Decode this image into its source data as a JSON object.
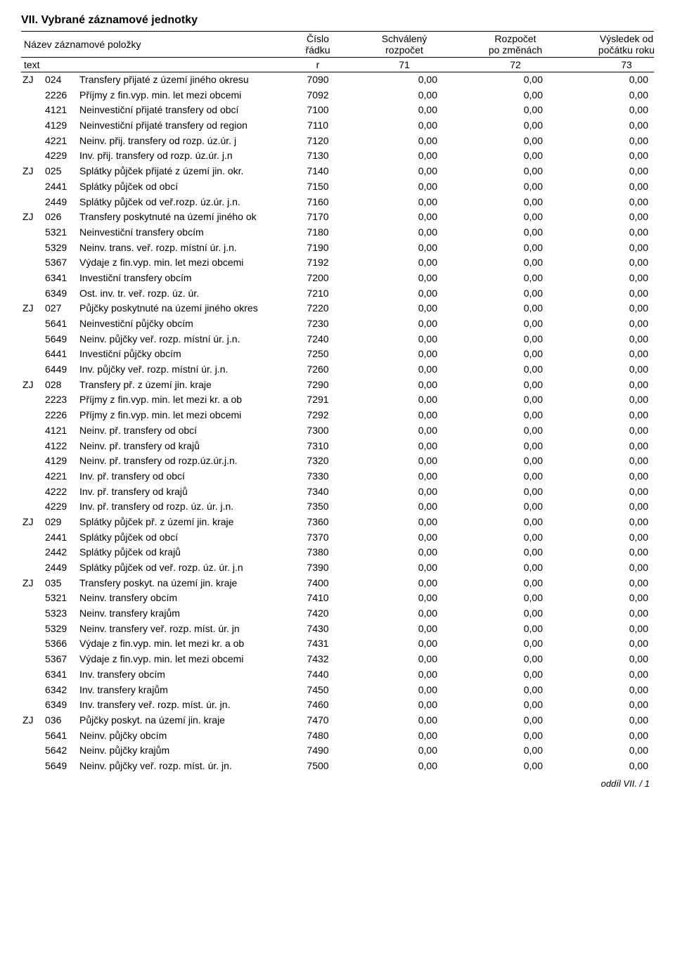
{
  "section_title": "VII. Vybrané záznamové jednotky",
  "header": {
    "name_label": "Název záznamové položky",
    "rnum_l1": "Číslo",
    "rnum_l2": "řádku",
    "col71_l1": "Schválený",
    "col71_l2": "rozpočet",
    "col72_l1": "Rozpočet",
    "col72_l2": "po změnách",
    "col73_l1": "Výsledek od",
    "col73_l2": "počátku roku"
  },
  "subheader": {
    "text": "text",
    "r": "r",
    "c71": "71",
    "c72": "72",
    "c73": "73"
  },
  "rows": [
    {
      "pref": "ZJ",
      "code": "024",
      "desc": "Transfery přijaté z území jiného okresu",
      "rnum": "7090",
      "v1": "0,00",
      "v2": "0,00",
      "v3": "0,00",
      "indent": false
    },
    {
      "pref": "",
      "code": "2226",
      "desc": "Příjmy z fin.vyp. min. let mezi obcemi",
      "rnum": "7092",
      "v1": "0,00",
      "v2": "0,00",
      "v3": "0,00",
      "indent": true
    },
    {
      "pref": "",
      "code": "4121",
      "desc": "Neinvestiční přijaté transfery od obcí",
      "rnum": "7100",
      "v1": "0,00",
      "v2": "0,00",
      "v3": "0,00",
      "indent": true
    },
    {
      "pref": "",
      "code": "4129",
      "desc": "Neinvestiční přijaté transfery od region",
      "rnum": "7110",
      "v1": "0,00",
      "v2": "0,00",
      "v3": "0,00",
      "indent": true
    },
    {
      "pref": "",
      "code": "4221",
      "desc": "Neinv. přij. transfery od rozp. úz.úr. j",
      "rnum": "7120",
      "v1": "0,00",
      "v2": "0,00",
      "v3": "0,00",
      "indent": true
    },
    {
      "pref": "",
      "code": "4229",
      "desc": "Inv. přij. transfery od rozp. úz.úr. j.n",
      "rnum": "7130",
      "v1": "0,00",
      "v2": "0,00",
      "v3": "0,00",
      "indent": true
    },
    {
      "pref": "ZJ",
      "code": "025",
      "desc": "Splátky půjček přijaté z území jin. okr.",
      "rnum": "7140",
      "v1": "0,00",
      "v2": "0,00",
      "v3": "0,00",
      "indent": false
    },
    {
      "pref": "",
      "code": "2441",
      "desc": "Splátky půjček od obcí",
      "rnum": "7150",
      "v1": "0,00",
      "v2": "0,00",
      "v3": "0,00",
      "indent": true
    },
    {
      "pref": "",
      "code": "2449",
      "desc": "Splátky půjček od veř.rozp. úz.úr. j.n.",
      "rnum": "7160",
      "v1": "0,00",
      "v2": "0,00",
      "v3": "0,00",
      "indent": true
    },
    {
      "pref": "ZJ",
      "code": "026",
      "desc": "Transfery poskytnuté na území jiného ok",
      "rnum": "7170",
      "v1": "0,00",
      "v2": "0,00",
      "v3": "0,00",
      "indent": false
    },
    {
      "pref": "",
      "code": "5321",
      "desc": "Neinvestiční transfery obcím",
      "rnum": "7180",
      "v1": "0,00",
      "v2": "0,00",
      "v3": "0,00",
      "indent": true
    },
    {
      "pref": "",
      "code": "5329",
      "desc": "Neinv. trans. veř. rozp. místní úr. j.n.",
      "rnum": "7190",
      "v1": "0,00",
      "v2": "0,00",
      "v3": "0,00",
      "indent": true
    },
    {
      "pref": "",
      "code": "5367",
      "desc": "Výdaje z fin.vyp. min. let mezi obcemi",
      "rnum": "7192",
      "v1": "0,00",
      "v2": "0,00",
      "v3": "0,00",
      "indent": true
    },
    {
      "pref": "",
      "code": "6341",
      "desc": "Investiční transfery obcím",
      "rnum": "7200",
      "v1": "0,00",
      "v2": "0,00",
      "v3": "0,00",
      "indent": true
    },
    {
      "pref": "",
      "code": "6349",
      "desc": "Ost. inv. tr. veř. rozp. úz. úr.",
      "rnum": "7210",
      "v1": "0,00",
      "v2": "0,00",
      "v3": "0,00",
      "indent": true
    },
    {
      "pref": "ZJ",
      "code": "027",
      "desc": "Půjčky poskytnuté na území jiného okres",
      "rnum": "7220",
      "v1": "0,00",
      "v2": "0,00",
      "v3": "0,00",
      "indent": false
    },
    {
      "pref": "",
      "code": "5641",
      "desc": "Neinvestiční půjčky obcím",
      "rnum": "7230",
      "v1": "0,00",
      "v2": "0,00",
      "v3": "0,00",
      "indent": true
    },
    {
      "pref": "",
      "code": "5649",
      "desc": "Neinv. půjčky veř. rozp. místní úr. j.n.",
      "rnum": "7240",
      "v1": "0,00",
      "v2": "0,00",
      "v3": "0,00",
      "indent": true
    },
    {
      "pref": "",
      "code": "6441",
      "desc": "Investiční půjčky obcím",
      "rnum": "7250",
      "v1": "0,00",
      "v2": "0,00",
      "v3": "0,00",
      "indent": true
    },
    {
      "pref": "",
      "code": "6449",
      "desc": "Inv. půjčky veř. rozp. místní úr. j.n.",
      "rnum": "7260",
      "v1": "0,00",
      "v2": "0,00",
      "v3": "0,00",
      "indent": true
    },
    {
      "pref": "ZJ",
      "code": "028",
      "desc": "Transfery př. z území jin. kraje",
      "rnum": "7290",
      "v1": "0,00",
      "v2": "0,00",
      "v3": "0,00",
      "indent": false
    },
    {
      "pref": "",
      "code": "2223",
      "desc": "Příjmy z fin.vyp. min. let mezi kr. a ob",
      "rnum": "7291",
      "v1": "0,00",
      "v2": "0,00",
      "v3": "0,00",
      "indent": true
    },
    {
      "pref": "",
      "code": "2226",
      "desc": "Příjmy z fin.vyp. min. let mezi obcemi",
      "rnum": "7292",
      "v1": "0,00",
      "v2": "0,00",
      "v3": "0,00",
      "indent": true
    },
    {
      "pref": "",
      "code": "4121",
      "desc": "Neinv. př. transfery od obcí",
      "rnum": "7300",
      "v1": "0,00",
      "v2": "0,00",
      "v3": "0,00",
      "indent": true
    },
    {
      "pref": "",
      "code": "4122",
      "desc": "Neinv. př. transfery od krajů",
      "rnum": "7310",
      "v1": "0,00",
      "v2": "0,00",
      "v3": "0,00",
      "indent": true
    },
    {
      "pref": "",
      "code": "4129",
      "desc": "Neinv. př. transfery od rozp.úz.úr.j.n.",
      "rnum": "7320",
      "v1": "0,00",
      "v2": "0,00",
      "v3": "0,00",
      "indent": true
    },
    {
      "pref": "",
      "code": "4221",
      "desc": "Inv. př. transfery od obcí",
      "rnum": "7330",
      "v1": "0,00",
      "v2": "0,00",
      "v3": "0,00",
      "indent": true
    },
    {
      "pref": "",
      "code": "4222",
      "desc": "Inv. př. transfery od krajů",
      "rnum": "7340",
      "v1": "0,00",
      "v2": "0,00",
      "v3": "0,00",
      "indent": true
    },
    {
      "pref": "",
      "code": "4229",
      "desc": "Inv. př. transfery od rozp. úz. úr. j.n.",
      "rnum": "7350",
      "v1": "0,00",
      "v2": "0,00",
      "v3": "0,00",
      "indent": true
    },
    {
      "pref": "ZJ",
      "code": "029",
      "desc": "Splátky půjček př. z území jin. kraje",
      "rnum": "7360",
      "v1": "0,00",
      "v2": "0,00",
      "v3": "0,00",
      "indent": false
    },
    {
      "pref": "",
      "code": "2441",
      "desc": "Splátky půjček od obcí",
      "rnum": "7370",
      "v1": "0,00",
      "v2": "0,00",
      "v3": "0,00",
      "indent": true
    },
    {
      "pref": "",
      "code": "2442",
      "desc": "Splátky půjček od krajů",
      "rnum": "7380",
      "v1": "0,00",
      "v2": "0,00",
      "v3": "0,00",
      "indent": true
    },
    {
      "pref": "",
      "code": "2449",
      "desc": "Splátky půjček od veř. rozp. úz. úr. j.n",
      "rnum": "7390",
      "v1": "0,00",
      "v2": "0,00",
      "v3": "0,00",
      "indent": true
    },
    {
      "pref": "ZJ",
      "code": "035",
      "desc": "Transfery poskyt. na území jin. kraje",
      "rnum": "7400",
      "v1": "0,00",
      "v2": "0,00",
      "v3": "0,00",
      "indent": false
    },
    {
      "pref": "",
      "code": "5321",
      "desc": "Neinv. transfery obcím",
      "rnum": "7410",
      "v1": "0,00",
      "v2": "0,00",
      "v3": "0,00",
      "indent": true
    },
    {
      "pref": "",
      "code": "5323",
      "desc": "Neinv. transfery krajům",
      "rnum": "7420",
      "v1": "0,00",
      "v2": "0,00",
      "v3": "0,00",
      "indent": true
    },
    {
      "pref": "",
      "code": "5329",
      "desc": "Neinv. transfery veř. rozp. míst. úr. jn",
      "rnum": "7430",
      "v1": "0,00",
      "v2": "0,00",
      "v3": "0,00",
      "indent": true
    },
    {
      "pref": "",
      "code": "5366",
      "desc": "Výdaje z fin.vyp. min. let mezi kr. a ob",
      "rnum": "7431",
      "v1": "0,00",
      "v2": "0,00",
      "v3": "0,00",
      "indent": true
    },
    {
      "pref": "",
      "code": "5367",
      "desc": "Výdaje z fin.vyp. min. let mezi obcemi",
      "rnum": "7432",
      "v1": "0,00",
      "v2": "0,00",
      "v3": "0,00",
      "indent": true
    },
    {
      "pref": "",
      "code": "6341",
      "desc": "Inv. transfery obcím",
      "rnum": "7440",
      "v1": "0,00",
      "v2": "0,00",
      "v3": "0,00",
      "indent": true
    },
    {
      "pref": "",
      "code": "6342",
      "desc": "Inv. transfery krajům",
      "rnum": "7450",
      "v1": "0,00",
      "v2": "0,00",
      "v3": "0,00",
      "indent": true
    },
    {
      "pref": "",
      "code": "6349",
      "desc": "Inv. transfery veř. rozp. míst. úr. jn.",
      "rnum": "7460",
      "v1": "0,00",
      "v2": "0,00",
      "v3": "0,00",
      "indent": true
    },
    {
      "pref": "ZJ",
      "code": "036",
      "desc": "Půjčky poskyt. na území jin. kraje",
      "rnum": "7470",
      "v1": "0,00",
      "v2": "0,00",
      "v3": "0,00",
      "indent": false
    },
    {
      "pref": "",
      "code": "5641",
      "desc": "Neinv. půjčky obcím",
      "rnum": "7480",
      "v1": "0,00",
      "v2": "0,00",
      "v3": "0,00",
      "indent": true
    },
    {
      "pref": "",
      "code": "5642",
      "desc": "Neinv. půjčky krajům",
      "rnum": "7490",
      "v1": "0,00",
      "v2": "0,00",
      "v3": "0,00",
      "indent": true
    },
    {
      "pref": "",
      "code": "5649",
      "desc": "Neinv. půjčky veř. rozp. míst. úr. jn.",
      "rnum": "7500",
      "v1": "0,00",
      "v2": "0,00",
      "v3": "0,00",
      "indent": true
    }
  ],
  "footer_text": "oddíl VII.  /  1"
}
